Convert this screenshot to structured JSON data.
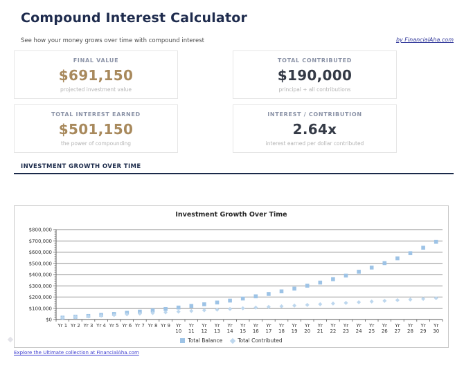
{
  "page": {
    "title": "Compound Interest Calculator",
    "subtitle": "See how your money grows over time with compound interest",
    "byline": "by FinancialAha.com",
    "footer_link": "Explore the Ultimate collection at FinancialAha.com"
  },
  "cards": [
    {
      "label": "FINAL VALUE",
      "value": "$691,150",
      "caption": "projected investment value",
      "value_color": "#a8895c"
    },
    {
      "label": "TOTAL CONTRIBUTED",
      "value": "$190,000",
      "caption": "principal + all contributions",
      "value_color": "#343a46"
    },
    {
      "label": "TOTAL INTEREST EARNED",
      "value": "$501,150",
      "caption": "the power of compounding",
      "value_color": "#a8895c"
    },
    {
      "label": "INTEREST / CONTRIBUTION",
      "value": "2.64x",
      "caption": "interest earned per dollar contributed",
      "value_color": "#343a46"
    }
  ],
  "section": {
    "title": "INVESTMENT GROWTH OVER TIME"
  },
  "chart_data": {
    "type": "scatter",
    "title": "Investment Growth Over Time",
    "categories": [
      "Yr 1",
      "Yr 2",
      "Yr 3",
      "Yr 4",
      "Yr 5",
      "Yr 6",
      "Yr 7",
      "Yr 8",
      "Yr 9",
      "Yr 10",
      "Yr 11",
      "Yr 12",
      "Yr 13",
      "Yr 14",
      "Yr 15",
      "Yr 16",
      "Yr 17",
      "Yr 18",
      "Yr 19",
      "Yr 20",
      "Yr 21",
      "Yr 22",
      "Yr 23",
      "Yr 24",
      "Yr 25",
      "Yr 26",
      "Yr 27",
      "Yr 28",
      "Yr 29",
      "Yr 30"
    ],
    "series": [
      {
        "name": "Total Balance",
        "marker": "square",
        "color": "#9dc3e6",
        "values": [
          16919,
          24339,
          32294,
          40825,
          49973,
          59782,
          70299,
          81578,
          93671,
          106639,
          120544,
          135454,
          151443,
          168587,
          186971,
          206683,
          227820,
          250485,
          274790,
          300851,
          328795,
          358761,
          390891,
          425345,
          462290,
          501905,
          544384,
          589934,
          638777,
          691150
        ]
      },
      {
        "name": "Total Contributed",
        "marker": "diamond",
        "color": "#bdd7ee",
        "values": [
          16000,
          22000,
          28000,
          34000,
          40000,
          46000,
          52000,
          58000,
          64000,
          70000,
          76000,
          82000,
          88000,
          94000,
          100000,
          106000,
          112000,
          118000,
          124000,
          130000,
          136000,
          142000,
          148000,
          154000,
          160000,
          166000,
          172000,
          178000,
          184000,
          190000
        ]
      }
    ],
    "xlabel": "",
    "ylabel": "",
    "ylim": [
      0,
      800000
    ],
    "ytick_step": 100000,
    "ytick_labels": [
      "$0",
      "$100,000",
      "$200,000",
      "$300,000",
      "$400,000",
      "$500,000",
      "$600,000",
      "$700,000",
      "$800,000"
    ],
    "grid": true,
    "legend_position": "bottom",
    "grid_color": "#8c8c8c",
    "axis_color": "#595959",
    "tick_label_color": "#333333"
  }
}
